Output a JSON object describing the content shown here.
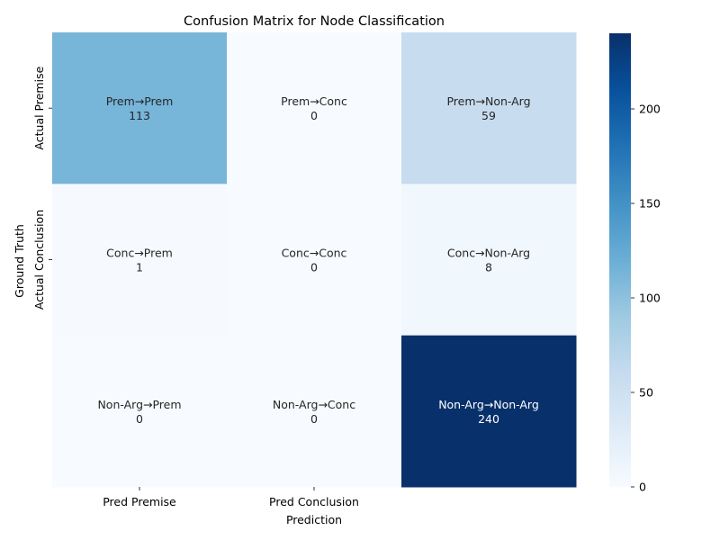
{
  "chart_data": {
    "type": "heatmap",
    "title": "Confusion Matrix for Node Classification",
    "xlabel": "Prediction",
    "ylabel": "Ground Truth",
    "x_tick_labels": [
      "Pred Premise",
      "Pred Conclusion",
      ""
    ],
    "y_tick_labels": [
      "Actual Premise",
      "Actual Conclusion",
      ""
    ],
    "cells": [
      [
        {
          "label": "Prem→Prem",
          "value": 113
        },
        {
          "label": "Prem→Conc",
          "value": 0
        },
        {
          "label": "Prem→Non-Arg",
          "value": 59
        }
      ],
      [
        {
          "label": "Conc→Prem",
          "value": 1
        },
        {
          "label": "Conc→Conc",
          "value": 0
        },
        {
          "label": "Conc→Non-Arg",
          "value": 8
        }
      ],
      [
        {
          "label": "Non-Arg→Prem",
          "value": 0
        },
        {
          "label": "Non-Arg→Conc",
          "value": 0
        },
        {
          "label": "Non-Arg→Non-Arg",
          "value": 240
        }
      ]
    ],
    "colormap": "Blues",
    "vmin": 0,
    "vmax": 240,
    "colorbar_ticks": [
      0,
      50,
      100,
      150,
      200
    ]
  }
}
